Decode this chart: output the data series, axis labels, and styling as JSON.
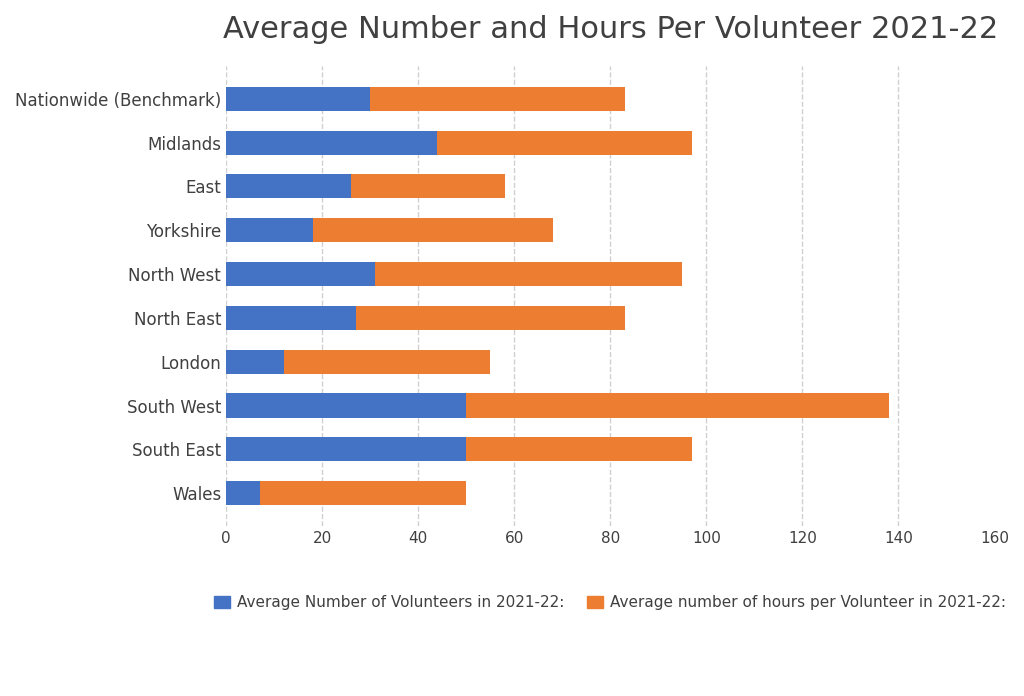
{
  "title": "Average Number and Hours Per Volunteer 2021-22",
  "categories": [
    "Wales",
    "South East",
    "South West",
    "London",
    "North East",
    "North West",
    "Yorkshire",
    "East",
    "Midlands",
    "Nationwide (Benchmark)"
  ],
  "volunteers": [
    7,
    50,
    50,
    12,
    27,
    31,
    18,
    26,
    44,
    30
  ],
  "hours": [
    43,
    47,
    88,
    43,
    56,
    64,
    50,
    32,
    53,
    53
  ],
  "color_volunteers": "#4472C4",
  "color_hours": "#ED7D31",
  "legend_volunteers": "Average Number of Volunteers in 2021-22:",
  "legend_hours": "Average number of hours per Volunteer in 2021-22:",
  "xlim": [
    0,
    160
  ],
  "xticks": [
    0,
    20,
    40,
    60,
    80,
    100,
    120,
    140,
    160
  ],
  "background_color": "#ffffff",
  "grid_color": "#d0d0d0",
  "title_fontsize": 22,
  "label_fontsize": 12,
  "tick_fontsize": 11,
  "legend_fontsize": 11,
  "bar_height": 0.55,
  "title_color": "#404040"
}
